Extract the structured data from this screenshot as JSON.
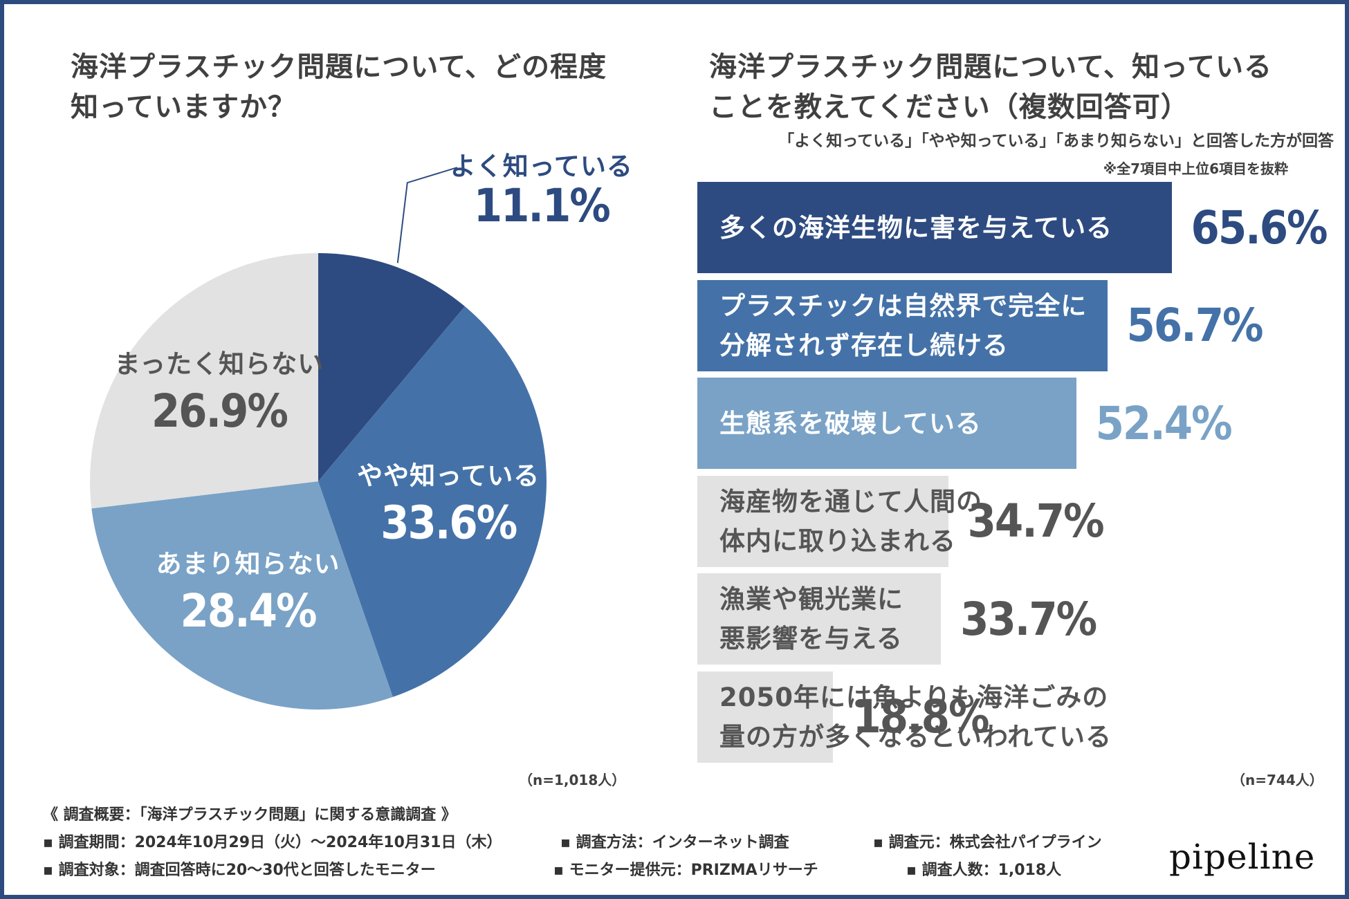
{
  "colors": {
    "frame": "#2d4b7f",
    "navy": "#2d4b80",
    "mid_blue": "#4472a8",
    "light_blue": "#79a2c6",
    "gray": "#e2e2e2",
    "dark_text": "#404040",
    "white": "#ffffff"
  },
  "pie": {
    "title_line1": "海洋プラスチック問題について、どの程度",
    "title_line2": "知っていますか？",
    "sample_note": "（n=1,018人）"
  },
  "bars": {
    "title_line1": "海洋プラスチック問題について、知っている",
    "title_line2": "ことを教えてください（複数回答可）",
    "note": "「よく知っている」「やや知っている」「あまり知らない」と回答した方が回答",
    "subnote": "※全7項目中上位6項目を抜粋",
    "sample_note": "（n=744人）"
  },
  "chart_data": [
    {
      "type": "pie",
      "title": "海洋プラスチック問題について、どの程度知っていますか？",
      "slices": [
        {
          "label": "よく知っている",
          "value": 11.1,
          "display": "11.1%",
          "color": "#2d4b80",
          "text_color": "#2d4b80",
          "label_outside": true
        },
        {
          "label": "やや知っている",
          "value": 33.6,
          "display": "33.6%",
          "color": "#4472a8",
          "text_color": "#ffffff",
          "label_outside": false
        },
        {
          "label": "あまり知らない",
          "value": 28.4,
          "display": "28.4%",
          "color": "#79a2c6",
          "text_color": "#ffffff",
          "label_outside": false
        },
        {
          "label": "まったく知らない",
          "value": 26.9,
          "display": "26.9%",
          "color": "#e2e2e2",
          "text_color": "#555555",
          "label_outside": false
        }
      ],
      "n": "n=1,018人"
    },
    {
      "type": "bar",
      "orientation": "horizontal",
      "title": "海洋プラスチック問題について、知っていることを教えてください（複数回答可）",
      "xlim": [
        0,
        100
      ],
      "unit": "%",
      "categories": [
        {
          "lines": [
            "多くの海洋生物に害を与えている"
          ],
          "value": 65.6,
          "display": "65.6%",
          "color": "#2d4b80",
          "label_color": "#ffffff",
          "value_color": "#2d4b80"
        },
        {
          "lines": [
            "プラスチックは自然界で完全に",
            "分解されず存在し続ける"
          ],
          "value": 56.7,
          "display": "56.7%",
          "color": "#4472a8",
          "label_color": "#ffffff",
          "value_color": "#4472a8"
        },
        {
          "lines": [
            "生態系を破壊している"
          ],
          "value": 52.4,
          "display": "52.4%",
          "color": "#79a2c6",
          "label_color": "#ffffff",
          "value_color": "#79a2c6"
        },
        {
          "lines": [
            "海産物を通じて人間の",
            "体内に取り込まれる"
          ],
          "value": 34.7,
          "display": "34.7%",
          "color": "#e2e2e2",
          "label_color": "#555555",
          "value_color": "#555555"
        },
        {
          "lines": [
            "漁業や観光業に",
            "悪影響を与える"
          ],
          "value": 33.7,
          "display": "33.7%",
          "color": "#e2e2e2",
          "label_color": "#555555",
          "value_color": "#555555"
        },
        {
          "lines": [
            "2050年には魚よりも海洋ごみの",
            "量の方が多くなるといわれている"
          ],
          "value": 18.8,
          "display": "18.8%",
          "color": "#e2e2e2",
          "label_color": "#555555",
          "value_color": "#555555"
        }
      ],
      "n": "n=744人"
    }
  ],
  "summary": {
    "heading": "《 調査概要：「海洋プラスチック問題」に関する意識調査 》",
    "period": "▪ 調査期間：2024年10月29日（火）～2024年10月31日（木）",
    "method": "▪ 調査方法：インターネット調査",
    "source": "▪ 調査元：株式会社パイプライン",
    "target": "▪ 調査対象：調査回答時に20～30代と回答したモニター",
    "provider": "▪ モニター提供元：PRIZMAリサーチ",
    "count": "▪ 調査人数：1,018人"
  },
  "logo": "pipeline"
}
